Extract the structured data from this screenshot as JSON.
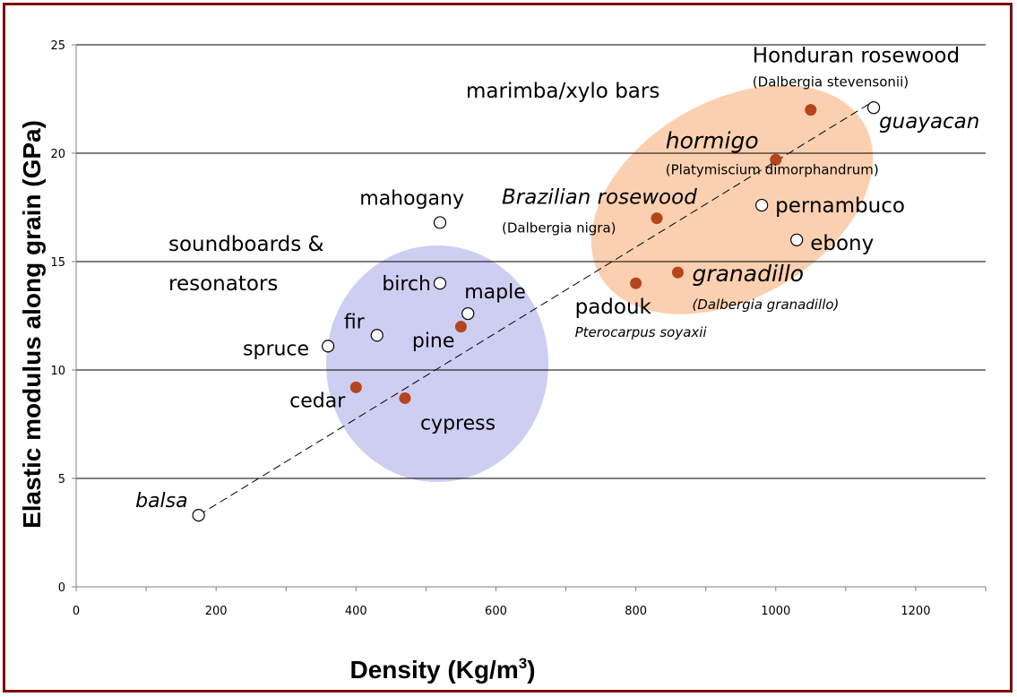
{
  "chart_data": {
    "type": "scatter",
    "xlabel": "Density (Kg/m",
    "xlabel_sup": "3",
    "xlabel_end": ")",
    "ylabel": "Elastic modulus along grain (GPa)",
    "xlim": [
      0,
      1300
    ],
    "ylim": [
      0,
      25
    ],
    "xticks": [
      "0",
      "200",
      "400",
      "600",
      "800",
      "1000",
      "1200"
    ],
    "yticks": [
      "0",
      "5",
      "10",
      "15",
      "20",
      "25"
    ],
    "grid": "horizontal",
    "colors": {
      "filled": "#b5451b",
      "open_stroke": "#000000",
      "trend": "#000000",
      "orange_region": "#fbd0b0",
      "blue_region": "#c6c6f0",
      "orange_text": "#f39200",
      "blue_text": "#9999ee"
    },
    "regions": [
      {
        "label": "marimba/xylo bars",
        "color": "#f39200"
      },
      {
        "label": "soundboards & resonators",
        "line1": "soundboards &",
        "line2": "resonators",
        "color": "#9999ee"
      }
    ],
    "trendline": {
      "x": [
        175,
        1140
      ],
      "y": [
        3.3,
        22.4
      ]
    },
    "points": [
      {
        "name": "balsa",
        "x": 175,
        "y": 3.3,
        "filled": false
      },
      {
        "name": "spruce",
        "x": 360,
        "y": 11.1,
        "filled": false
      },
      {
        "name": "cedar",
        "x": 400,
        "y": 9.2,
        "filled": true
      },
      {
        "name": "fir",
        "x": 430,
        "y": 11.6,
        "filled": false
      },
      {
        "name": "cypress",
        "x": 470,
        "y": 8.7,
        "filled": true
      },
      {
        "name": "birch",
        "x": 520,
        "y": 14.0,
        "filled": false
      },
      {
        "name": "mahogany",
        "x": 520,
        "y": 16.8,
        "filled": false
      },
      {
        "name": "pine",
        "x": 550,
        "y": 12.0,
        "filled": true
      },
      {
        "name": "maple",
        "x": 560,
        "y": 12.6,
        "filled": false
      },
      {
        "name": "padouk",
        "x": 800,
        "y": 14.0,
        "filled": true,
        "sublabel": "Pterocarpus soyaxii"
      },
      {
        "name": "Brazilian rosewood",
        "x": 830,
        "y": 17.0,
        "filled": true,
        "sublabel": "(Dalbergia nigra)"
      },
      {
        "name": "granadillo",
        "x": 860,
        "y": 14.5,
        "filled": true,
        "sublabel": "(Dalbergia granadillo)"
      },
      {
        "name": "pernambuco",
        "x": 980,
        "y": 17.6,
        "filled": false
      },
      {
        "name": "hormigo",
        "x": 1000,
        "y": 19.7,
        "filled": true,
        "sublabel": "(Platymiscium dimorphandrum)"
      },
      {
        "name": "ebony",
        "x": 1030,
        "y": 16.0,
        "filled": false
      },
      {
        "name": "Honduran rosewood",
        "x": 1050,
        "y": 22.0,
        "filled": true,
        "sublabel": "(Dalbergia stevensonii)"
      },
      {
        "name": "guayacan",
        "x": 1140,
        "y": 22.1,
        "filled": false
      }
    ]
  }
}
